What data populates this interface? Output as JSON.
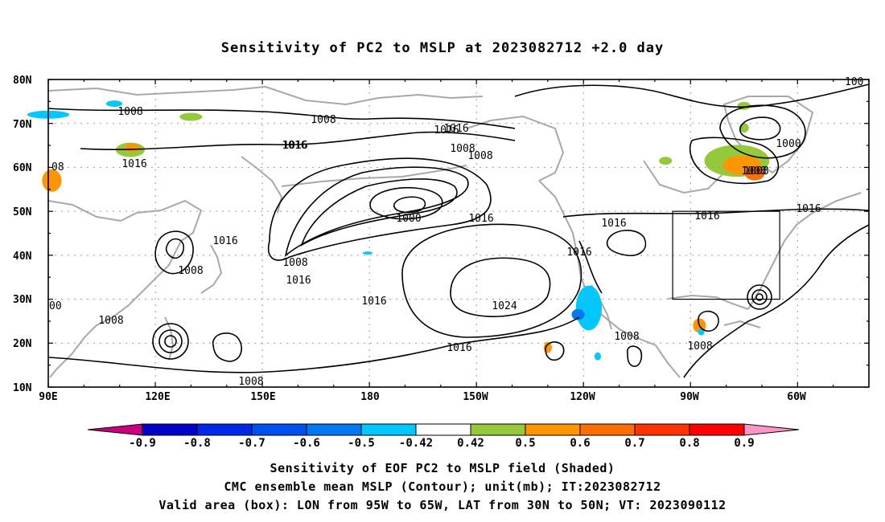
{
  "title": "Sensitivity of PC2 to MSLP at 2023082712 +2.0 day",
  "lat_labels": [
    "80N",
    "70N",
    "60N",
    "50N",
    "40N",
    "30N",
    "20N",
    "10N"
  ],
  "lon_labels": [
    "90E",
    "120E",
    "150E",
    "180",
    "150W",
    "120W",
    "90W",
    "60W"
  ],
  "contour_labels": [
    "1008",
    "1008",
    "1016",
    "1008",
    "1016",
    "1008",
    "1016",
    "1000",
    "1016",
    "1016",
    "1008",
    "1016",
    "1016",
    "1016",
    "1008",
    "1016",
    "1016",
    "1024",
    "1008",
    "1008",
    "1016",
    "1008",
    "1008",
    "1016",
    "1000",
    "1008",
    "1016",
    "1016",
    "1008"
  ],
  "edge_label_top_right": "100",
  "edge_label_left": "00",
  "edge_label_left_top": "08",
  "colorbar": {
    "ticks": [
      "-0.9",
      "-0.8",
      "-0.7",
      "-0.6",
      "-0.5",
      "-0.42",
      "0.42",
      "0.5",
      "0.6",
      "0.7",
      "0.8",
      "0.9"
    ],
    "colors": [
      "#c8007f",
      "#0000c8",
      "#0028e6",
      "#0050f0",
      "#0078f0",
      "#00c8ff",
      "#ffffff",
      "#96c83c",
      "#ff9600",
      "#ff6e00",
      "#ff3200",
      "#ff0000",
      "#ff96c8"
    ]
  },
  "captions": {
    "line1": "Sensitivity of EOF PC2 to MSLP field (Shaded)",
    "line2": "CMC ensemble mean MSLP (Contour); unit(mb); IT:2023082712",
    "line3": "Valid area (box): LON from 95W to 65W, LAT from 30N to 50N; VT: 2023090112"
  },
  "shading": [
    {
      "lon": 179.5,
      "lat": 40.5,
      "rx": 6,
      "ry": 2,
      "color": "#00c8ff"
    },
    {
      "lon": -118.5,
      "lat": 28,
      "rx": 16,
      "ry": 28,
      "color": "#00c8ff"
    },
    {
      "lon": -121.5,
      "lat": 26.5,
      "rx": 8,
      "ry": 7,
      "color": "#0078f0"
    },
    {
      "lon": -77,
      "lat": 61.5,
      "rx": 40,
      "ry": 20,
      "color": "#96c83c"
    },
    {
      "lon": -75.5,
      "lat": 60.5,
      "rx": 24,
      "ry": 12,
      "color": "#ff9600"
    },
    {
      "lon": -72,
      "lat": 58.5,
      "rx": 12,
      "ry": 8,
      "color": "#ff6e00"
    },
    {
      "lon": 113,
      "lat": 64,
      "rx": 18,
      "ry": 9,
      "color": "#96c83c"
    },
    {
      "lon": 113.5,
      "lat": 64.5,
      "rx": 10,
      "ry": 5,
      "color": "#ff9600"
    },
    {
      "lon": 91,
      "lat": 57,
      "rx": 12,
      "ry": 14,
      "color": "#ff9600"
    },
    {
      "lon": 108.5,
      "lat": 74.5,
      "rx": 10,
      "ry": 4,
      "color": "#00c8ff"
    },
    {
      "lon": 90,
      "lat": 72,
      "rx": 26,
      "ry": 5,
      "color": "#00c8ff"
    },
    {
      "lon": -130,
      "lat": 19,
      "rx": 5,
      "ry": 7,
      "color": "#ff9600"
    },
    {
      "lon": -87.5,
      "lat": 24,
      "rx": 8,
      "ry": 9,
      "color": "#ff9600"
    },
    {
      "lon": -97,
      "lat": 61.5,
      "rx": 8,
      "ry": 5,
      "color": "#96c83c"
    },
    {
      "lon": -75,
      "lat": 74,
      "rx": 8,
      "ry": 5,
      "color": "#96c83c"
    },
    {
      "lon": -75,
      "lat": 69,
      "rx": 6,
      "ry": 6,
      "color": "#96c83c"
    },
    {
      "lon": -116,
      "lat": 17,
      "rx": 4,
      "ry": 5,
      "color": "#00c8ff"
    },
    {
      "lon": 130,
      "lat": 71.5,
      "rx": 14,
      "ry": 5,
      "color": "#96c83c"
    },
    {
      "lon": -87,
      "lat": 22.5,
      "rx": 4,
      "ry": 4,
      "color": "#00c8ff"
    }
  ]
}
